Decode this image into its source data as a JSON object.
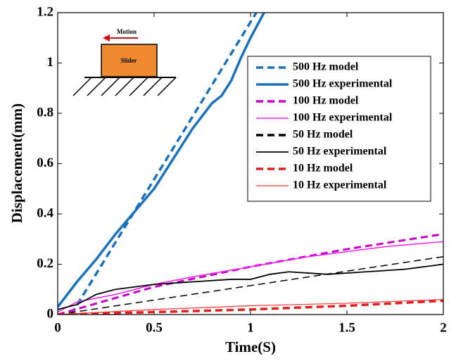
{
  "chart_data": {
    "type": "line",
    "x_label": "Time(S)",
    "y_label": "Displacement(mm)",
    "xlim": [
      0,
      2
    ],
    "ylim": [
      0,
      1.2
    ],
    "xticks": [
      0,
      0.5,
      1,
      1.5,
      2
    ],
    "yticks": [
      0,
      0.2,
      0.4,
      0.6,
      0.8,
      1,
      1.2
    ],
    "legend": "upper right",
    "annotations": [
      "Motion",
      "Slider"
    ],
    "series": [
      {
        "name": "500 Hz model",
        "color": "#1a72bd",
        "dashed": true,
        "width": 3.5,
        "x": [
          0.07,
          1.03
        ],
        "values": [
          0,
          1.2
        ]
      },
      {
        "name": "500 Hz experimental",
        "color": "#1a72bd",
        "dashed": false,
        "width": 3.5,
        "x": [
          0,
          0.1,
          0.2,
          0.3,
          0.4,
          0.5,
          0.6,
          0.7,
          0.8,
          0.85,
          0.9,
          0.95,
          1.0,
          1.07
        ],
        "values": [
          0.03,
          0.13,
          0.22,
          0.32,
          0.41,
          0.5,
          0.62,
          0.74,
          0.84,
          0.87,
          0.93,
          1.02,
          1.1,
          1.2
        ]
      },
      {
        "name": "100 Hz model",
        "color": "#cc00cc",
        "dashed": true,
        "width": 3,
        "x": [
          0,
          0.5,
          1,
          1.5,
          2
        ],
        "values": [
          0,
          0.11,
          0.19,
          0.26,
          0.32
        ]
      },
      {
        "name": "100 Hz experimental",
        "color": "#ee22ee",
        "dashed": false,
        "width": 1.5,
        "x": [
          0,
          0.1,
          0.3,
          0.5,
          0.7,
          1,
          1.3,
          1.5,
          1.7,
          2
        ],
        "values": [
          0.01,
          0.05,
          0.08,
          0.12,
          0.15,
          0.19,
          0.23,
          0.25,
          0.27,
          0.29
        ]
      },
      {
        "name": "50 Hz model",
        "color": "#000000",
        "dashed": true,
        "width": 1.5,
        "x": [
          0,
          2
        ],
        "values": [
          0,
          0.23
        ]
      },
      {
        "name": "50 Hz experimental",
        "color": "#000000",
        "dashed": false,
        "width": 1.8,
        "x": [
          0,
          0.1,
          0.2,
          0.3,
          0.5,
          0.7,
          0.9,
          1,
          1.1,
          1.2,
          1.4,
          1.6,
          1.8,
          2
        ],
        "values": [
          0.02,
          0.04,
          0.08,
          0.1,
          0.12,
          0.13,
          0.14,
          0.14,
          0.16,
          0.17,
          0.16,
          0.17,
          0.18,
          0.2
        ]
      },
      {
        "name": "10 Hz model",
        "color": "#e02020",
        "dashed": true,
        "width": 3.5,
        "x": [
          0,
          0.5,
          1,
          1.5,
          2
        ],
        "values": [
          0,
          0.01,
          0.02,
          0.035,
          0.055
        ]
      },
      {
        "name": "10 Hz experimental",
        "color": "#ff3030",
        "dashed": false,
        "width": 1.2,
        "x": [
          0,
          0.5,
          1,
          1.5,
          2
        ],
        "values": [
          0,
          0.02,
          0.035,
          0.045,
          0.06
        ]
      }
    ]
  }
}
